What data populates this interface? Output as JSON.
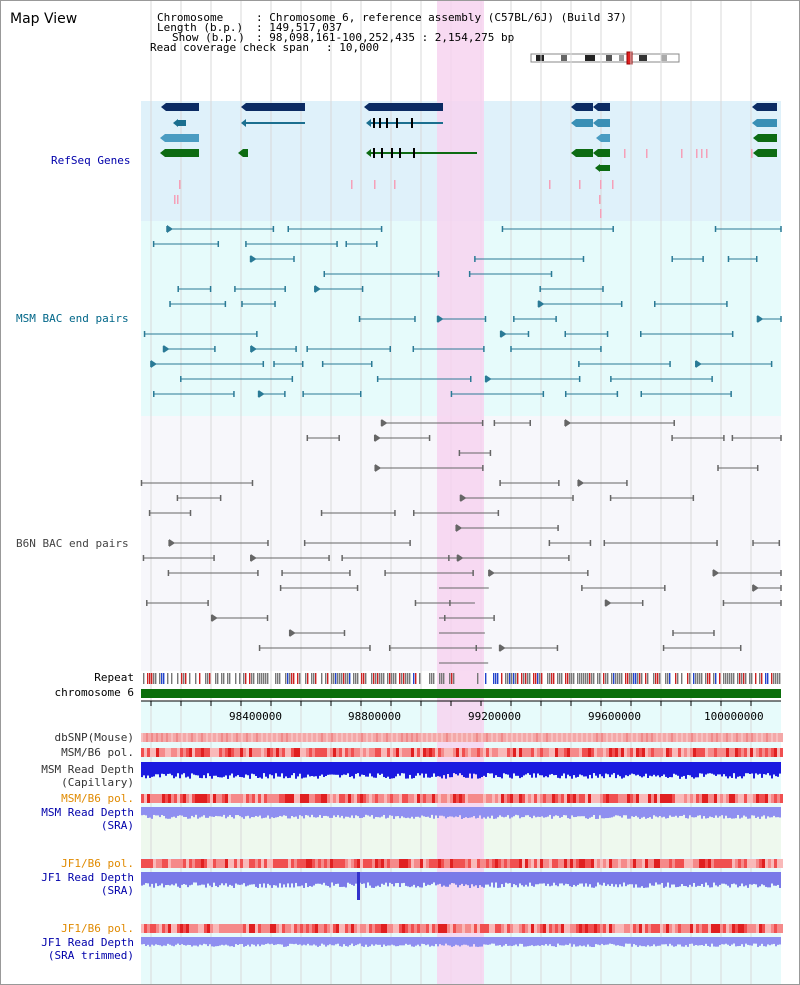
{
  "title": "Map View",
  "header": {
    "chromosome_label": "Chromosome",
    "chromosome_value": ": Chromosome 6, reference assembly (C57BL/6J) (Build 37)",
    "length_label": "Length (b.p.)",
    "length_value": ": 149,517,037",
    "show_label": "Show (b.p.)",
    "show_value": ": 98,098,161-100,252,435 : 2,154,275 bp",
    "span_label": "Read coverage check span",
    "span_value": ": 10,000"
  },
  "tracks": {
    "refseq": "RefSeq Genes",
    "msm_bac": "MSM BAC end pairs",
    "b6n_bac": "B6N BAC end pairs",
    "repeat": "Repeat",
    "chromosome": "chromosome 6",
    "dbsnp": "dbSNP(Mouse)",
    "msm_b6_pol_1": "MSM/B6 pol.",
    "msm_read_depth_cap_1": "MSM Read Depth",
    "msm_read_depth_cap_2": "(Capillary)",
    "msm_b6_pol_2": "MSM/B6 pol.",
    "msm_read_depth_sra_1": "MSM Read Depth",
    "msm_read_depth_sra_2": "(SRA)",
    "jf1_b6_pol_1": "JF1/B6 pol.",
    "jf1_read_depth_sra_1": "JF1 Read Depth",
    "jf1_read_depth_sra_2": "(SRA)",
    "jf1_b6_pol_2": "JF1/B6 pol.",
    "jf1_read_depth_trim_1": "JF1 Read Depth",
    "jf1_read_depth_trim_2": "(SRA trimmed)"
  },
  "axis_ticks": [
    "98400000",
    "98800000",
    "99200000",
    "99600000",
    "100000000"
  ],
  "colors": {
    "refseq_bg": "#dff1fa",
    "msm_bg": "#e6fbfb",
    "b6n_bg": "#f7f7fb",
    "lower_bg": "#e7fbfb",
    "highlight": "#f7d3f0",
    "navy": "#0b2b63",
    "teal": "#1b6f8f",
    "green": "#0d6b12",
    "grey": "#666666",
    "pink": "#f5a0b8",
    "blue_label": "#0000aa",
    "teal_label": "#006688",
    "orange_label": "#e08a00",
    "chr_green": "#0b6e0b"
  }
}
